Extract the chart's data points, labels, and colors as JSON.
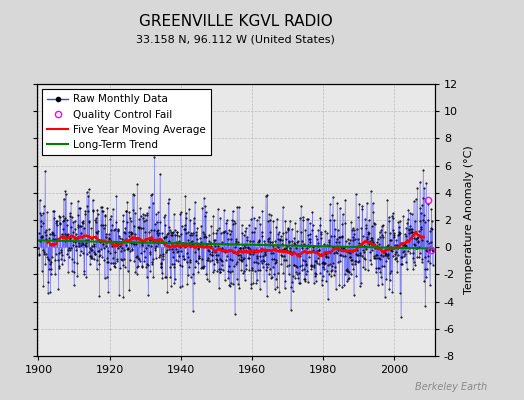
{
  "title": "GREENVILLE KGVL RADIO",
  "subtitle": "33.158 N, 96.112 W (United States)",
  "ylabel": "Temperature Anomaly (°C)",
  "watermark": "Berkeley Earth",
  "year_start": 1900,
  "year_end": 2011,
  "ylim": [
    -8,
    12
  ],
  "yticks": [
    -8,
    -6,
    -4,
    -2,
    0,
    2,
    4,
    6,
    8,
    10,
    12
  ],
  "xticks": [
    1900,
    1920,
    1940,
    1960,
    1980,
    2000
  ],
  "bg_color": "#d8d8d8",
  "plot_bg_color": "#e8e8e8",
  "raw_line_color": "#4040ff",
  "raw_marker_color": "black",
  "qc_fail_color": "magenta",
  "moving_avg_color": "red",
  "trend_color": "green",
  "title_fontsize": 11,
  "subtitle_fontsize": 8,
  "label_fontsize": 8,
  "legend_fontsize": 7.5,
  "seed": 12345
}
